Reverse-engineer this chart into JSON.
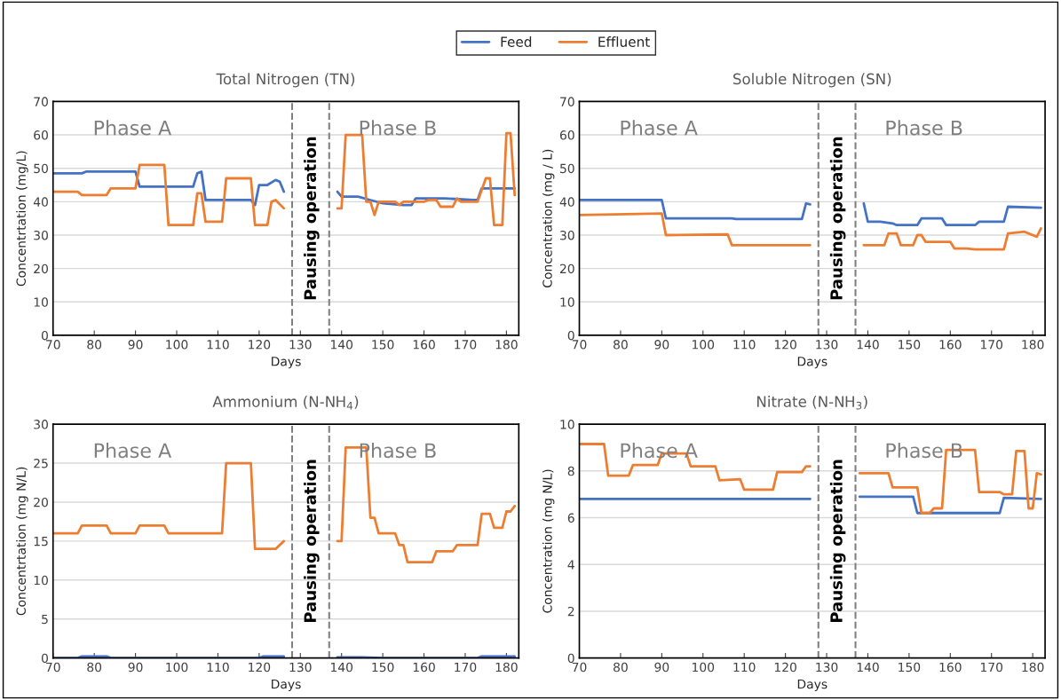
{
  "chart_data": [
    {
      "type": "line",
      "title": "Total Nitrogen (TN)",
      "xlabel": "Days",
      "ylabel": "Concentrtation (mg/L)",
      "xlim": [
        70,
        183
      ],
      "xticks": [
        70,
        80,
        90,
        100,
        110,
        120,
        130,
        140,
        150,
        160,
        170,
        180
      ],
      "ylim": [
        0,
        70
      ],
      "yticks": [
        0,
        10,
        20,
        30,
        40,
        50,
        60,
        70
      ],
      "grid": "y",
      "legend": "top",
      "line_style": "solid",
      "annotations": [
        "Phase A",
        "Phase B",
        "Pausing operation"
      ],
      "ref_lines": [
        {
          "axis": "x",
          "value": 128,
          "color": "#808080",
          "line_style": "dashed"
        },
        {
          "axis": "x",
          "value": 137,
          "color": "#808080",
          "line_style": "dashed"
        }
      ],
      "series": [
        {
          "name": "Feed",
          "color": "#4472c4",
          "x": [
            70,
            77,
            78,
            90,
            91,
            104,
            105,
            106,
            107,
            118,
            119,
            120,
            122,
            124,
            125,
            126,
            null,
            139,
            140,
            144,
            147,
            150,
            155,
            157,
            158,
            165,
            172,
            173,
            174,
            182
          ],
          "values": [
            48.5,
            48.5,
            49,
            49,
            44.5,
            44.5,
            48.5,
            49,
            40.5,
            40.5,
            39,
            45,
            45,
            46.5,
            46,
            43,
            null,
            43,
            41.5,
            41.5,
            40.5,
            39.5,
            39,
            39,
            41,
            41,
            40.5,
            40.5,
            44,
            44
          ]
        },
        {
          "name": "Effluent",
          "color": "#ed7d31",
          "x": [
            70,
            76,
            77,
            83,
            84,
            90,
            91,
            97,
            98,
            104,
            105,
            106,
            107,
            111,
            112,
            118,
            119,
            122,
            123,
            124,
            126,
            null,
            139,
            140,
            141,
            145,
            146,
            147,
            148,
            149,
            153,
            154,
            155,
            160,
            161,
            163,
            164,
            167,
            168,
            169,
            172,
            173,
            175,
            176,
            177,
            179,
            180,
            181,
            182
          ],
          "values": [
            43,
            43,
            42,
            42,
            44,
            44,
            51,
            51,
            33,
            33,
            42.5,
            42.5,
            34,
            34,
            47,
            47,
            33,
            33,
            40,
            40.5,
            38,
            null,
            38,
            38,
            60,
            60,
            40,
            40,
            36,
            40,
            40,
            39,
            40,
            40,
            40.5,
            40.5,
            38.5,
            38.5,
            41,
            40,
            40,
            40,
            47,
            47,
            33,
            33,
            60.5,
            60.5,
            42
          ]
        }
      ]
    },
    {
      "type": "line",
      "title": "Soluble Nitrogen (SN)",
      "xlabel": "Days",
      "ylabel": "Concentration (mg / L)",
      "xlim": [
        70,
        183
      ],
      "xticks": [
        70,
        80,
        90,
        100,
        110,
        120,
        130,
        140,
        150,
        160,
        170,
        180
      ],
      "ylim": [
        0,
        70
      ],
      "yticks": [
        0,
        10,
        20,
        30,
        40,
        50,
        60,
        70
      ],
      "grid": "y",
      "line_style": "solid",
      "annotations": [
        "Phase A",
        "Phase B",
        "Pausing operation"
      ],
      "ref_lines": [
        {
          "axis": "x",
          "value": 128,
          "color": "#808080",
          "line_style": "dashed"
        },
        {
          "axis": "x",
          "value": 137,
          "color": "#808080",
          "line_style": "dashed"
        }
      ],
      "series": [
        {
          "color": "#4472c4",
          "x": [
            70,
            90,
            91,
            107,
            108,
            124,
            125,
            126,
            null,
            139,
            140,
            143,
            146,
            147,
            152,
            153,
            158,
            159,
            166,
            167,
            173,
            174,
            182
          ],
          "values": [
            40.5,
            40.5,
            35,
            35,
            34.8,
            34.8,
            39.5,
            39.2,
            null,
            39.5,
            34,
            34,
            33.5,
            33,
            33,
            35,
            35,
            33,
            33,
            34,
            34,
            38.5,
            38.2
          ]
        },
        {
          "color": "#ed7d31",
          "x": [
            70,
            90,
            91,
            106,
            107,
            126,
            null,
            139,
            144,
            145,
            147,
            148,
            151,
            152,
            153,
            154,
            160,
            161,
            164,
            166,
            173,
            174,
            178,
            181,
            182
          ],
          "values": [
            36,
            36.5,
            30,
            30.2,
            27,
            27,
            null,
            27,
            27,
            30.5,
            30.5,
            27,
            27,
            30,
            30,
            28,
            28,
            26,
            26,
            25.7,
            25.7,
            30.5,
            31,
            29.5,
            32
          ]
        }
      ]
    },
    {
      "type": "line",
      "title": "Ammonium (N-NH$_{4}$)",
      "xlabel": "Days",
      "ylabel": "Concentrtation (mg N/L)",
      "xlim": [
        70,
        183
      ],
      "xticks": [
        70,
        80,
        90,
        100,
        110,
        120,
        130,
        140,
        150,
        160,
        170,
        180
      ],
      "ylim": [
        0,
        30
      ],
      "yticks": [
        0,
        5,
        10,
        15,
        20,
        25,
        30
      ],
      "grid": "y",
      "line_style": "solid",
      "annotations": [
        "Phase A",
        "Phase B",
        "Pausing operation"
      ],
      "ref_lines": [
        {
          "axis": "x",
          "value": 128,
          "color": "#808080",
          "line_style": "dashed"
        },
        {
          "axis": "x",
          "value": 137,
          "color": "#808080",
          "line_style": "dashed"
        }
      ],
      "series": [
        {
          "color": "#4472c4",
          "x": [
            70,
            76,
            77,
            83,
            84,
            120,
            121,
            126,
            null,
            139,
            145,
            150,
            173,
            174,
            182
          ],
          "values": [
            0,
            0,
            0.2,
            0.2,
            0,
            0,
            0.2,
            0.2,
            null,
            0.1,
            0.1,
            0,
            0,
            0.2,
            0.2
          ]
        },
        {
          "color": "#ed7d31",
          "x": [
            70,
            76,
            77,
            83,
            84,
            90,
            91,
            97,
            98,
            111,
            112,
            118,
            119,
            124,
            126,
            null,
            139,
            140,
            141,
            146,
            147,
            148,
            149,
            153,
            154,
            155,
            156,
            162,
            163,
            167,
            168,
            173,
            174,
            176,
            177,
            179,
            180,
            181,
            182
          ],
          "values": [
            16,
            16,
            17,
            17,
            16,
            16,
            17,
            17,
            16,
            16,
            25,
            25,
            14,
            14,
            15,
            null,
            15,
            15,
            27,
            27,
            18,
            18,
            16,
            16,
            14.5,
            14.5,
            12.3,
            12.3,
            13.7,
            13.7,
            14.5,
            14.5,
            18.5,
            18.5,
            16.7,
            16.7,
            18.8,
            18.8,
            19.5
          ]
        }
      ]
    },
    {
      "type": "line",
      "title": "Nitrate (N-NH$_{3}$)",
      "xlabel": "Days",
      "ylabel": "Concentration (mg N/L)",
      "xlim": [
        70,
        183
      ],
      "xticks": [
        70,
        80,
        90,
        100,
        110,
        120,
        130,
        140,
        150,
        160,
        170,
        180
      ],
      "ylim": [
        0,
        10
      ],
      "yticks": [
        0,
        2,
        4,
        6,
        8,
        10
      ],
      "grid": "y",
      "line_style": "solid",
      "annotations": [
        "Phase A",
        "Phase B",
        "Pausing operation"
      ],
      "ref_lines": [
        {
          "axis": "x",
          "value": 128,
          "color": "#808080",
          "line_style": "dashed"
        },
        {
          "axis": "x",
          "value": 137,
          "color": "#808080",
          "line_style": "dashed"
        }
      ],
      "series": [
        {
          "color": "#4472c4",
          "x": [
            70,
            126,
            null,
            138,
            151,
            152,
            172,
            173,
            182
          ],
          "values": [
            6.8,
            6.8,
            null,
            6.9,
            6.9,
            6.2,
            6.2,
            6.85,
            6.8
          ]
        },
        {
          "color": "#ed7d31",
          "x": [
            70,
            76,
            77,
            82,
            83,
            89,
            90,
            96,
            97,
            103,
            104,
            109,
            110,
            117,
            118,
            124,
            125,
            126,
            null,
            138,
            145,
            146,
            152,
            153,
            155,
            156,
            158,
            159,
            166,
            167,
            172,
            173,
            175,
            176,
            178,
            179,
            180,
            181,
            182
          ],
          "values": [
            9.15,
            9.15,
            7.8,
            7.8,
            8.25,
            8.25,
            8.75,
            8.75,
            8.2,
            8.2,
            7.6,
            7.65,
            7.2,
            7.2,
            7.95,
            7.95,
            8.2,
            8.2,
            null,
            7.9,
            7.9,
            7.3,
            7.3,
            6.2,
            6.2,
            6.4,
            6.4,
            8.9,
            8.9,
            7.1,
            7.1,
            7.0,
            7.0,
            8.85,
            8.85,
            6.4,
            6.4,
            7.9,
            7.85
          ]
        }
      ]
    }
  ]
}
